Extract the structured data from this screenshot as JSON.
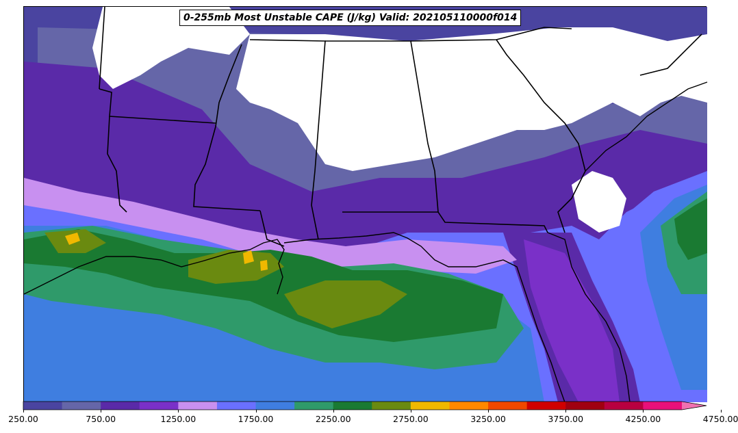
{
  "title": "0-255mb Most Unstable CAPE (J/kg) Valid: 202105110000f014",
  "colorbar": {
    "levels": [
      "250.00",
      "500.00",
      "750.00",
      "1000.00",
      "1250.00",
      "1500.00",
      "1750.00",
      "2000.00",
      "2250.00",
      "2500.00",
      "2750.00",
      "3000.00",
      "3250.00",
      "3500.00",
      "3750.00",
      "4000.00",
      "4250.00",
      "4500.00",
      "4750.00"
    ],
    "colors": [
      "#4a44a0",
      "#6566a8",
      "#5a2aa8",
      "#7a30c8",
      "#c890f0",
      "#6a70ff",
      "#3f7ee0",
      "#2f9a6a",
      "#1a7a32",
      "#6a8a10",
      "#f0b800",
      "#ff8800",
      "#f04800",
      "#d00000",
      "#a00010",
      "#b80040",
      "#e8107a",
      "#f070b0"
    ],
    "tick_labels": [
      "250.00",
      "750.00",
      "1250.00",
      "1750.00",
      "2250.00",
      "2750.00",
      "3250.00",
      "3750.00",
      "4250.00",
      "4750.00"
    ]
  },
  "regions": {
    "land_no_cape": "#ffffff",
    "low": "#4a44a0",
    "low_mid": "#6566a8",
    "purple": "#5a2aa8",
    "violet": "#7a30c8",
    "lavender": "#c890f0",
    "blue": "#6a70ff",
    "steel": "#3f7ee0",
    "teal": "#2f9a6a",
    "green": "#1a7a32",
    "olive": "#6a8a10",
    "gold": "#f0b800"
  }
}
